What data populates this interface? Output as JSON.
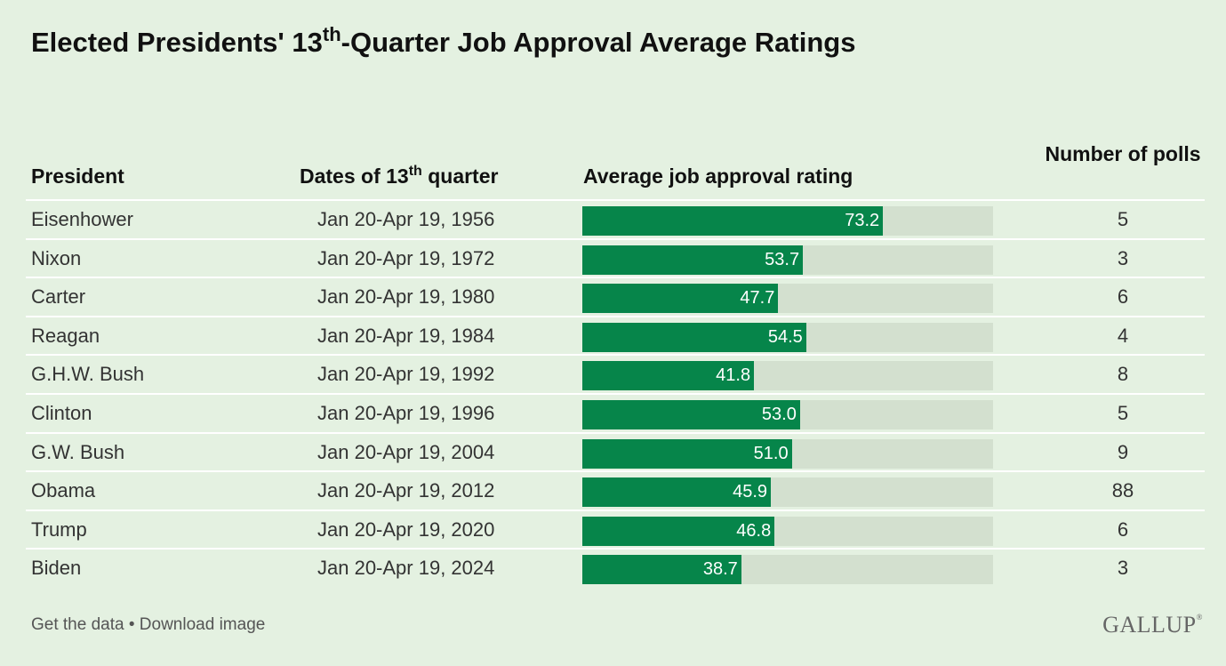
{
  "title": {
    "main": "Elected Presidents' 13",
    "sup": "th",
    "rest": "-Quarter Job Approval Average Ratings"
  },
  "headers": {
    "president": "President",
    "dates_pre": "Dates of 13",
    "dates_sup": "th",
    "dates_post": " quarter",
    "rating": "Average job approval rating",
    "polls": "Number of polls"
  },
  "colors": {
    "bar": "#06854a",
    "track": "#d3e0cf",
    "background": "#e4f1e1"
  },
  "chart_data": {
    "type": "table",
    "xlim": [
      0,
      100
    ],
    "columns": [
      "President",
      "Dates of 13th quarter",
      "Average job approval rating",
      "Number of polls"
    ],
    "rows": [
      {
        "president": "Eisenhower",
        "dates": "Jan 20-Apr 19, 1956",
        "rating": 73.2,
        "rating_label": "73.2",
        "polls": "5"
      },
      {
        "president": "Nixon",
        "dates": "Jan 20-Apr 19, 1972",
        "rating": 53.7,
        "rating_label": "53.7",
        "polls": "3"
      },
      {
        "president": "Carter",
        "dates": "Jan 20-Apr 19, 1980",
        "rating": 47.7,
        "rating_label": "47.7",
        "polls": "6"
      },
      {
        "president": "Reagan",
        "dates": "Jan 20-Apr 19, 1984",
        "rating": 54.5,
        "rating_label": "54.5",
        "polls": "4"
      },
      {
        "president": "G.H.W. Bush",
        "dates": "Jan 20-Apr 19, 1992",
        "rating": 41.8,
        "rating_label": "41.8",
        "polls": "8"
      },
      {
        "president": "Clinton",
        "dates": "Jan 20-Apr 19, 1996",
        "rating": 53.0,
        "rating_label": "53.0",
        "polls": "5"
      },
      {
        "president": "G.W. Bush",
        "dates": "Jan 20-Apr 19, 2004",
        "rating": 51.0,
        "rating_label": "51.0",
        "polls": "9"
      },
      {
        "president": "Obama",
        "dates": "Jan 20-Apr 19, 2012",
        "rating": 45.9,
        "rating_label": "45.9",
        "polls": "88"
      },
      {
        "president": "Trump",
        "dates": "Jan 20-Apr 19, 2020",
        "rating": 46.8,
        "rating_label": "46.8",
        "polls": "6"
      },
      {
        "president": "Biden",
        "dates": "Jan 20-Apr 19, 2024",
        "rating": 38.7,
        "rating_label": "38.7",
        "polls": "3"
      }
    ]
  },
  "footer": {
    "get_data": "Get the data",
    "separator": " • ",
    "download": "Download image"
  },
  "logo": {
    "text": "GALLUP",
    "mark": "®"
  }
}
